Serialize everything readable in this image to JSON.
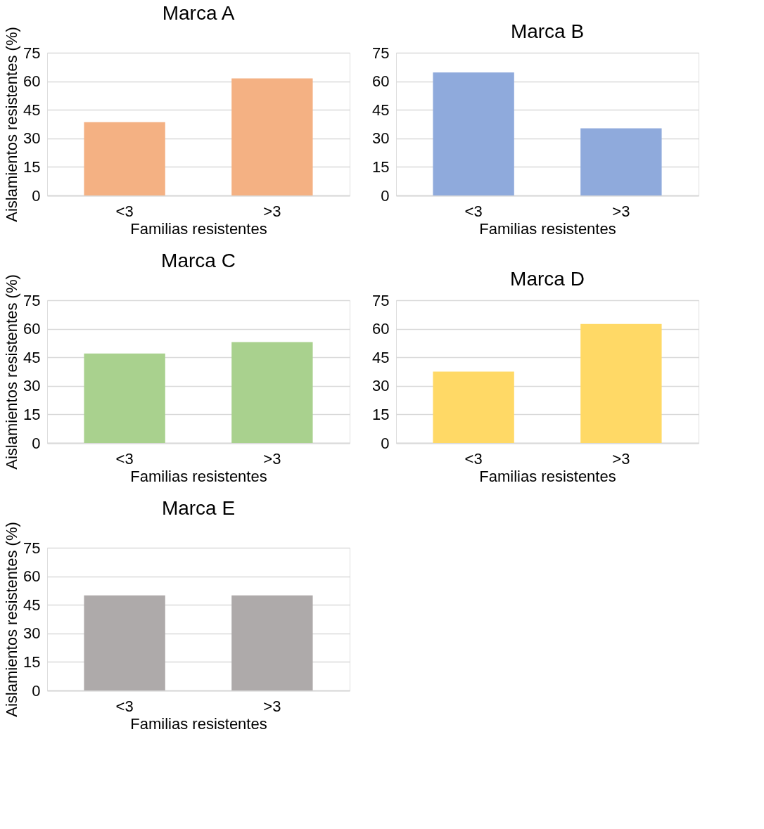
{
  "chart_data": [
    {
      "type": "bar",
      "title": "Marca A",
      "xlabel": "Familias resistentes",
      "ylabel": "Aislamientos resistentes (%)",
      "categories": [
        "<3",
        ">3"
      ],
      "values": [
        38.5,
        61.5
      ],
      "color": "#f4b183",
      "ylim": [
        0,
        75
      ],
      "yticks": [
        0,
        15,
        30,
        45,
        60,
        75
      ],
      "grid": "y"
    },
    {
      "type": "bar",
      "title": "Marca B",
      "xlabel": "Familias resistentes",
      "categories": [
        "<3",
        ">3"
      ],
      "values": [
        64.7,
        35.3
      ],
      "color": "#8faadc",
      "ylim": [
        0,
        75
      ],
      "yticks": [
        0,
        15,
        30,
        45,
        60,
        75
      ],
      "grid": "y"
    },
    {
      "type": "bar",
      "title": "Marca C",
      "xlabel": "Familias resistentes",
      "ylabel": "Aislamientos resistentes (%)",
      "categories": [
        "<3",
        ">3"
      ],
      "values": [
        47,
        53
      ],
      "color": "#a9d18e",
      "ylim": [
        0,
        75
      ],
      "yticks": [
        0,
        15,
        30,
        45,
        60,
        75
      ],
      "grid": "y"
    },
    {
      "type": "bar",
      "title": "Marca D",
      "xlabel": "Familias resistentes",
      "categories": [
        "<3",
        ">3"
      ],
      "values": [
        37.5,
        62.5
      ],
      "color": "#ffd966",
      "ylim": [
        0,
        75
      ],
      "yticks": [
        0,
        15,
        30,
        45,
        60,
        75
      ],
      "grid": "y"
    },
    {
      "type": "bar",
      "title": "Marca E",
      "xlabel": "Familias resistentes",
      "ylabel": "Aislamientos resistentes (%)",
      "categories": [
        "<3",
        ">3"
      ],
      "values": [
        50,
        50
      ],
      "color": "#aeaaaa",
      "ylim": [
        0,
        75
      ],
      "yticks": [
        0,
        15,
        30,
        45,
        60,
        75
      ],
      "grid": "y"
    }
  ]
}
